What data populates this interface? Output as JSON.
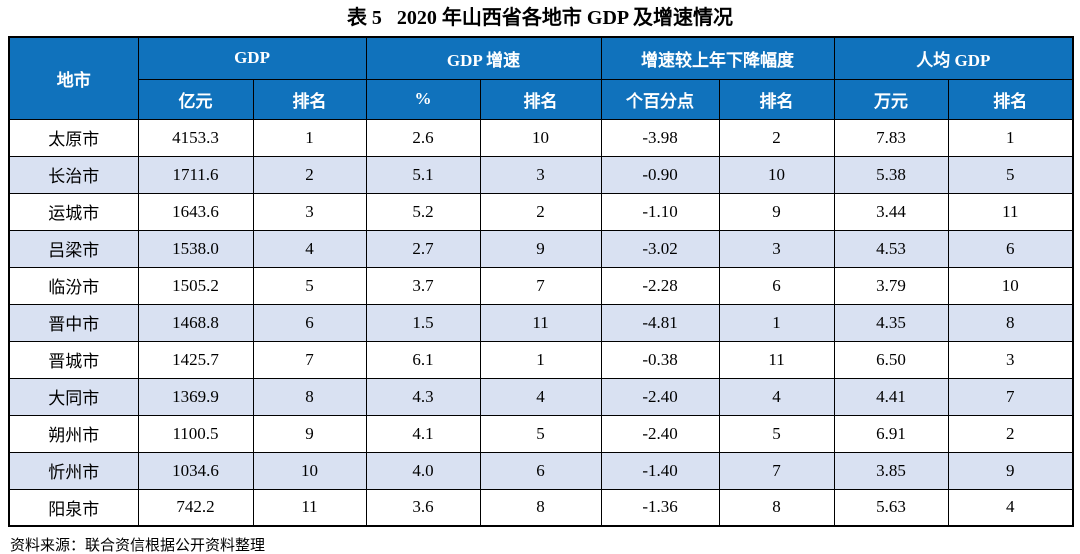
{
  "title": "表 5   2020 年山西省各地市 GDP 及增速情况",
  "table": {
    "col_groups": [
      {
        "label": "地市"
      },
      {
        "label": "GDP",
        "sub": [
          "亿元",
          "排名"
        ]
      },
      {
        "label": "GDP 增速",
        "sub": [
          "%",
          "排名"
        ]
      },
      {
        "label": "增速较上年下降幅度",
        "sub": [
          "个百分点",
          "排名"
        ]
      },
      {
        "label": "人均 GDP",
        "sub": [
          "万元",
          "排名"
        ]
      }
    ],
    "rows": [
      [
        "太原市",
        "4153.3",
        "1",
        "2.6",
        "10",
        "-3.98",
        "2",
        "7.83",
        "1"
      ],
      [
        "长治市",
        "1711.6",
        "2",
        "5.1",
        "3",
        "-0.90",
        "10",
        "5.38",
        "5"
      ],
      [
        "运城市",
        "1643.6",
        "3",
        "5.2",
        "2",
        "-1.10",
        "9",
        "3.44",
        "11"
      ],
      [
        "吕梁市",
        "1538.0",
        "4",
        "2.7",
        "9",
        "-3.02",
        "3",
        "4.53",
        "6"
      ],
      [
        "临汾市",
        "1505.2",
        "5",
        "3.7",
        "7",
        "-2.28",
        "6",
        "3.79",
        "10"
      ],
      [
        "晋中市",
        "1468.8",
        "6",
        "1.5",
        "11",
        "-4.81",
        "1",
        "4.35",
        "8"
      ],
      [
        "晋城市",
        "1425.7",
        "7",
        "6.1",
        "1",
        "-0.38",
        "11",
        "6.50",
        "3"
      ],
      [
        "大同市",
        "1369.9",
        "8",
        "4.3",
        "4",
        "-2.40",
        "4",
        "4.41",
        "7"
      ],
      [
        "朔州市",
        "1100.5",
        "9",
        "4.1",
        "5",
        "-2.40",
        "5",
        "6.91",
        "2"
      ],
      [
        "忻州市",
        "1034.6",
        "10",
        "4.0",
        "6",
        "-1.40",
        "7",
        "3.85",
        "9"
      ],
      [
        "阳泉市",
        "742.2",
        "11",
        "3.6",
        "8",
        "-1.36",
        "8",
        "5.63",
        "4"
      ]
    ]
  },
  "source": "资料来源：联合资信根据公开资料整理",
  "colors": {
    "header_bg": "#1072BC",
    "header_text": "#FFFFFF",
    "row_alt_bg": "#D9E1F2",
    "border": "#000000"
  }
}
